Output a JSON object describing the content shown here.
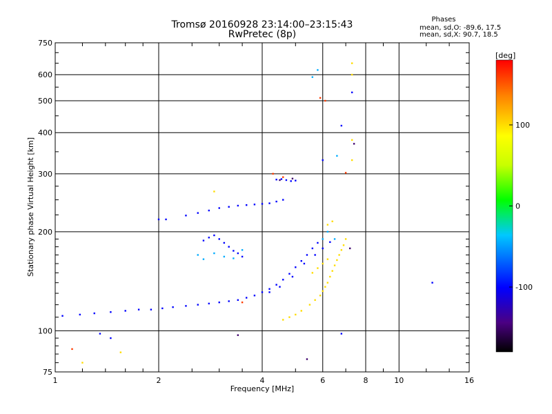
{
  "header": {
    "title_line1": "Tromsø 20160928 23:14:00–23:15:43",
    "title_line2": "RwPretec (8p)"
  },
  "phase_summary": {
    "heading": "Phases",
    "line_o": "mean, sd,O: -89.6, 17.5",
    "line_x": "mean, sd,X:  90.7, 18.5"
  },
  "colorbar": {
    "unit_label": "[deg]",
    "min": -180,
    "max": 180,
    "tick_values": [
      100,
      0,
      -100
    ],
    "tick_labels": [
      "100",
      "0",
      "-100"
    ]
  },
  "chart_data": {
    "type": "scatter",
    "title": "Tromsø 20160928 23:14:00–23:15:43",
    "subtitle": "RwPretec (8p)",
    "xlabel": "Frequency [MHz]",
    "ylabel": "Stationary phase Virtual Height [km]",
    "xscale": "log",
    "yscale": "log",
    "xlim": [
      1,
      16
    ],
    "ylim": [
      75,
      750
    ],
    "grid": true,
    "x_ticks": [
      1,
      2,
      4,
      6,
      8,
      10,
      16
    ],
    "x_tick_labels": [
      "1",
      "2",
      "4",
      "6",
      "8",
      "10",
      "16"
    ],
    "y_ticks": [
      75,
      100,
      200,
      300,
      400,
      500,
      600,
      750
    ],
    "y_tick_labels": [
      "75",
      "100",
      "200",
      "300",
      "400",
      "500",
      "600",
      "750"
    ],
    "color_encoding": "phase [deg]",
    "series": [
      {
        "phase_deg": -100,
        "points": [
          [
            1.05,
            111
          ],
          [
            1.18,
            112
          ],
          [
            1.3,
            113
          ],
          [
            1.45,
            114
          ],
          [
            1.6,
            115
          ],
          [
            1.75,
            116
          ],
          [
            1.9,
            116
          ],
          [
            2.05,
            117
          ],
          [
            2.2,
            118
          ],
          [
            2.4,
            119
          ],
          [
            2.6,
            120
          ],
          [
            2.8,
            121
          ],
          [
            3.0,
            122
          ],
          [
            3.2,
            123
          ],
          [
            3.4,
            124
          ],
          [
            3.6,
            126
          ],
          [
            3.8,
            128
          ],
          [
            4.0,
            131
          ],
          [
            4.2,
            134
          ],
          [
            4.4,
            138
          ],
          [
            4.6,
            143
          ],
          [
            4.8,
            149
          ],
          [
            5.0,
            156
          ],
          [
            5.2,
            163
          ],
          [
            5.4,
            170
          ],
          [
            5.6,
            178
          ],
          [
            5.8,
            185
          ],
          [
            2.0,
            218
          ],
          [
            2.1,
            218
          ],
          [
            2.4,
            224
          ],
          [
            2.6,
            228
          ],
          [
            2.8,
            232
          ],
          [
            3.0,
            236
          ],
          [
            3.2,
            238
          ],
          [
            3.4,
            240
          ],
          [
            3.6,
            241
          ],
          [
            3.8,
            242
          ],
          [
            4.0,
            243
          ],
          [
            4.2,
            244
          ],
          [
            4.4,
            247
          ],
          [
            4.6,
            250
          ],
          [
            2.7,
            188
          ],
          [
            2.8,
            192
          ],
          [
            2.9,
            195
          ],
          [
            3.0,
            190
          ],
          [
            3.1,
            185
          ],
          [
            3.2,
            180
          ],
          [
            3.3,
            175
          ],
          [
            3.4,
            172
          ],
          [
            3.5,
            168
          ],
          [
            4.4,
            288
          ],
          [
            4.55,
            289
          ],
          [
            4.7,
            287
          ],
          [
            4.85,
            285
          ],
          [
            5.0,
            286
          ],
          [
            6.0,
            330
          ],
          [
            6.8,
            420
          ],
          [
            7.3,
            530
          ],
          [
            4.2,
            131
          ],
          [
            4.5,
            136
          ],
          [
            4.9,
            146
          ],
          [
            5.3,
            160
          ],
          [
            5.7,
            170
          ],
          [
            6.0,
            178
          ],
          [
            6.3,
            186
          ],
          [
            1.35,
            98
          ],
          [
            1.45,
            95
          ],
          [
            6.8,
            98
          ],
          [
            12.5,
            140
          ]
        ]
      },
      {
        "phase_deg": -45,
        "points": [
          [
            2.6,
            170
          ],
          [
            2.7,
            165
          ],
          [
            2.9,
            172
          ],
          [
            3.1,
            168
          ],
          [
            3.3,
            166
          ],
          [
            3.5,
            176
          ],
          [
            5.6,
            590
          ],
          [
            5.8,
            620
          ],
          [
            6.0,
            190
          ],
          [
            6.2,
            200
          ],
          [
            6.5,
            190
          ],
          [
            6.6,
            340
          ]
        ]
      },
      {
        "phase_deg": 100,
        "points": [
          [
            5.5,
            120
          ],
          [
            5.7,
            124
          ],
          [
            5.9,
            128
          ],
          [
            6.0,
            132
          ],
          [
            6.1,
            136
          ],
          [
            6.2,
            140
          ],
          [
            6.3,
            146
          ],
          [
            6.4,
            152
          ],
          [
            6.5,
            158
          ],
          [
            6.6,
            164
          ],
          [
            6.7,
            170
          ],
          [
            6.8,
            176
          ],
          [
            6.9,
            182
          ],
          [
            7.0,
            190
          ],
          [
            5.6,
            150
          ],
          [
            5.8,
            155
          ],
          [
            6.0,
            160
          ],
          [
            6.2,
            165
          ],
          [
            5.2,
            115
          ],
          [
            5.0,
            112
          ],
          [
            4.8,
            110
          ],
          [
            4.6,
            108
          ],
          [
            7.3,
            650
          ],
          [
            7.3,
            600
          ],
          [
            7.3,
            380
          ],
          [
            7.3,
            330
          ],
          [
            6.2,
            210
          ],
          [
            6.4,
            215
          ],
          [
            2.9,
            265
          ],
          [
            1.2,
            80
          ],
          [
            1.55,
            86
          ]
        ]
      },
      {
        "phase_deg": 160,
        "points": [
          [
            5.9,
            510
          ],
          [
            7.0,
            302
          ],
          [
            4.6,
            293
          ],
          [
            4.3,
            300
          ],
          [
            3.5,
            122
          ],
          [
            1.12,
            88
          ],
          [
            6.1,
            500
          ]
        ]
      },
      {
        "phase_deg": -150,
        "points": [
          [
            3.4,
            97
          ],
          [
            5.4,
            82
          ],
          [
            7.2,
            178
          ],
          [
            4.5,
            287
          ],
          [
            4.9,
            290
          ],
          [
            7.4,
            370
          ]
        ]
      }
    ]
  }
}
